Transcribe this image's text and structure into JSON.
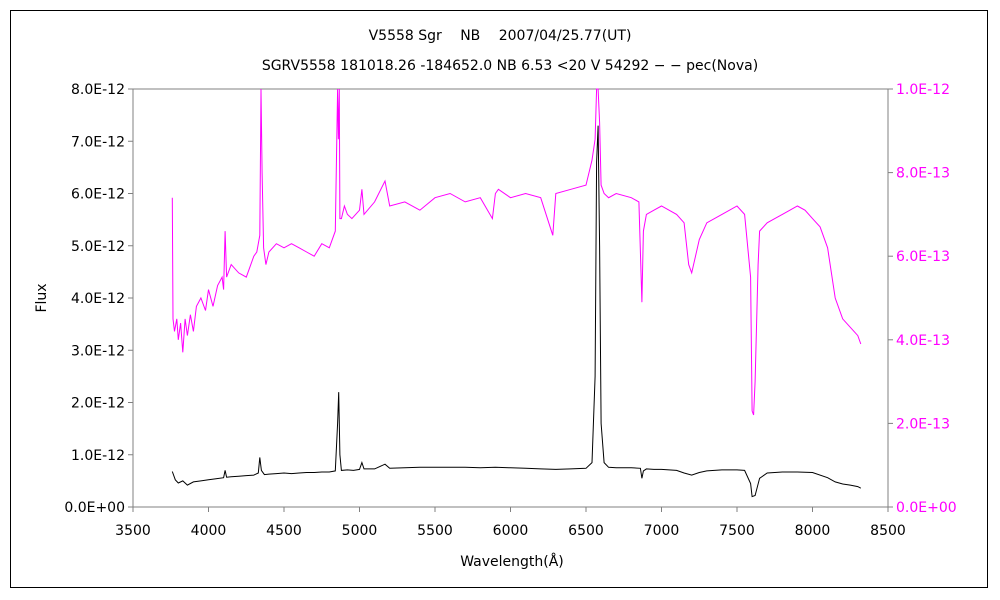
{
  "chart_data": {
    "type": "line",
    "title": "V5558 Sgr　 NB　 2007/04/25.77(UT)",
    "subtitle": "SGRV5558 181018.26 -184652.0 NB 6.53 <20 V 54292 − − pec(Nova)",
    "xlabel": "Wavelength(Å)",
    "ylabel": "Flux",
    "xlim": [
      3500,
      8500
    ],
    "ylim_left": [
      0,
      8e-12
    ],
    "ylim_right": [
      0,
      1e-12
    ],
    "x_ticks": [
      "3500",
      "4000",
      "4500",
      "5000",
      "5500",
      "6000",
      "6500",
      "7000",
      "7500",
      "8000",
      "8500"
    ],
    "y_ticks_left": [
      "0.0E+00",
      "1.0E-12",
      "2.0E-12",
      "3.0E-12",
      "4.0E-12",
      "5.0E-12",
      "6.0E-12",
      "7.0E-12",
      "8.0E-12"
    ],
    "y_ticks_right": [
      "0.0E+00",
      "2.0E-13",
      "4.0E-13",
      "6.0E-13",
      "8.0E-13",
      "1.0E-12"
    ],
    "grid": false,
    "series": [
      {
        "axis": "left",
        "color": "#000000",
        "x": [
          3760,
          3780,
          3800,
          3830,
          3860,
          3900,
          3950,
          4000,
          4050,
          4100,
          4110,
          4120,
          4150,
          4200,
          4250,
          4300,
          4330,
          4340,
          4350,
          4370,
          4400,
          4450,
          4500,
          4550,
          4600,
          4650,
          4700,
          4750,
          4800,
          4840,
          4855,
          4862,
          4870,
          4880,
          4920,
          4960,
          5000,
          5016,
          5030,
          5100,
          5169,
          5200,
          5300,
          5400,
          5500,
          5600,
          5700,
          5800,
          5900,
          6000,
          6100,
          6200,
          6300,
          6400,
          6500,
          6540,
          6560,
          6570,
          6580,
          6590,
          6600,
          6620,
          6650,
          6700,
          6800,
          6860,
          6870,
          6880,
          6900,
          6950,
          7000,
          7100,
          7150,
          7200,
          7250,
          7300,
          7400,
          7500,
          7550,
          7590,
          7600,
          7620,
          7650,
          7700,
          7750,
          7800,
          7900,
          8000,
          8100,
          8150,
          8200,
          8250,
          8300,
          8320
        ],
        "y": [
          6.8e-13,
          5.2e-13,
          4.6e-13,
          5e-13,
          4.2e-13,
          4.8e-13,
          5e-13,
          5.2e-13,
          5.4e-13,
          5.6e-13,
          7e-13,
          5.7e-13,
          5.8e-13,
          5.9e-13,
          6e-13,
          6.1e-13,
          6.5e-13,
          9.5e-13,
          7e-13,
          6.2e-13,
          6.3e-13,
          6.4e-13,
          6.5e-13,
          6.4e-13,
          6.5e-13,
          6.6e-13,
          6.6e-13,
          6.7e-13,
          6.7e-13,
          6.9e-13,
          1.6e-12,
          2.2e-12,
          1e-12,
          7e-13,
          7.1e-13,
          7e-13,
          7.2e-13,
          8.5e-13,
          7.3e-13,
          7.3e-13,
          8.2e-13,
          7.4e-13,
          7.5e-13,
          7.6e-13,
          7.6e-13,
          7.6e-13,
          7.6e-13,
          7.5e-13,
          7.6e-13,
          7.5e-13,
          7.4e-13,
          7.3e-13,
          7.2e-13,
          7.3e-13,
          7.4e-13,
          8.5e-13,
          2.5e-12,
          6.6e-12,
          7.3e-12,
          5e-12,
          1.6e-12,
          8.5e-13,
          7.6e-13,
          7.5e-13,
          7.5e-13,
          7.4e-13,
          5.5e-13,
          6.9e-13,
          7.3e-13,
          7.2e-13,
          7.2e-13,
          7e-13,
          6.5e-13,
          6.1e-13,
          6.6e-13,
          6.9e-13,
          7.1e-13,
          7.1e-13,
          7e-13,
          4.5e-13,
          2e-13,
          2.2e-13,
          5.5e-13,
          6.5e-13,
          6.6e-13,
          6.7e-13,
          6.7e-13,
          6.6e-13,
          5.6e-13,
          4.8e-13,
          4.4e-13,
          4.2e-13,
          3.9e-13,
          3.6e-13
        ]
      },
      {
        "axis": "right",
        "color": "#ff00ff",
        "x": [
          3760,
          3765,
          3775,
          3790,
          3800,
          3815,
          3830,
          3845,
          3860,
          3880,
          3900,
          3920,
          3950,
          3980,
          4000,
          4030,
          4060,
          4090,
          4100,
          4110,
          4120,
          4150,
          4200,
          4250,
          4300,
          4320,
          4340,
          4348,
          4355,
          4365,
          4380,
          4400,
          4450,
          4500,
          4550,
          4600,
          4650,
          4700,
          4750,
          4800,
          4840,
          4855,
          4860,
          4866,
          4870,
          4880,
          4900,
          4920,
          4950,
          5000,
          5016,
          5030,
          5100,
          5169,
          5200,
          5300,
          5400,
          5500,
          5600,
          5700,
          5800,
          5880,
          5900,
          5920,
          6000,
          6100,
          6200,
          6280,
          6300,
          6400,
          6500,
          6540,
          6560,
          6570,
          6580,
          6590,
          6600,
          6620,
          6650,
          6700,
          6800,
          6850,
          6870,
          6880,
          6900,
          6950,
          7000,
          7100,
          7150,
          7180,
          7200,
          7250,
          7300,
          7400,
          7500,
          7550,
          7590,
          7600,
          7610,
          7620,
          7640,
          7650,
          7700,
          7750,
          7800,
          7850,
          7900,
          7950,
          8000,
          8050,
          8100,
          8150,
          8200,
          8250,
          8300,
          8320
        ],
        "y": [
          7.4e-13,
          4.5e-13,
          4.2e-13,
          4.5e-13,
          4e-13,
          4.4e-13,
          3.7e-13,
          4.5e-13,
          4.1e-13,
          4.6e-13,
          4.2e-13,
          4.8e-13,
          5e-13,
          4.7e-13,
          5.2e-13,
          4.8e-13,
          5.3e-13,
          5.5e-13,
          5.2e-13,
          6.6e-13,
          5.5e-13,
          5.8e-13,
          5.6e-13,
          5.5e-13,
          6e-13,
          6.1e-13,
          6.5e-13,
          1e-12,
          8e-13,
          6.2e-13,
          5.8e-13,
          6.1e-13,
          6.3e-13,
          6.2e-13,
          6.3e-13,
          6.2e-13,
          6.1e-13,
          6e-13,
          6.3e-13,
          6.2e-13,
          6.6e-13,
          1e-12,
          8.8e-13,
          1e-12,
          6.9e-13,
          6.9e-13,
          7.2e-13,
          7e-13,
          6.9e-13,
          7.1e-13,
          7.6e-13,
          7e-13,
          7.3e-13,
          7.8e-13,
          7.2e-13,
          7.3e-13,
          7.1e-13,
          7.4e-13,
          7.5e-13,
          7.3e-13,
          7.4e-13,
          6.9e-13,
          7.5e-13,
          7.6e-13,
          7.4e-13,
          7.5e-13,
          7.4e-13,
          6.5e-13,
          7.5e-13,
          7.6e-13,
          7.7e-13,
          8.3e-13,
          8.8e-13,
          1e-12,
          1e-12,
          9.2e-13,
          7.7e-13,
          7.5e-13,
          7.4e-13,
          7.5e-13,
          7.4e-13,
          7.3e-13,
          4.9e-13,
          6.6e-13,
          7e-13,
          7.1e-13,
          7.2e-13,
          7e-13,
          6.8e-13,
          5.8e-13,
          5.6e-13,
          6.4e-13,
          6.8e-13,
          7e-13,
          7.2e-13,
          7e-13,
          5.5e-13,
          2.3e-13,
          2.2e-13,
          3e-13,
          5.8e-13,
          6.6e-13,
          6.8e-13,
          6.9e-13,
          7e-13,
          7.1e-13,
          7.2e-13,
          7.1e-13,
          6.9e-13,
          6.7e-13,
          6.2e-13,
          5e-13,
          4.5e-13,
          4.3e-13,
          4.1e-13,
          3.9e-13
        ]
      }
    ]
  }
}
